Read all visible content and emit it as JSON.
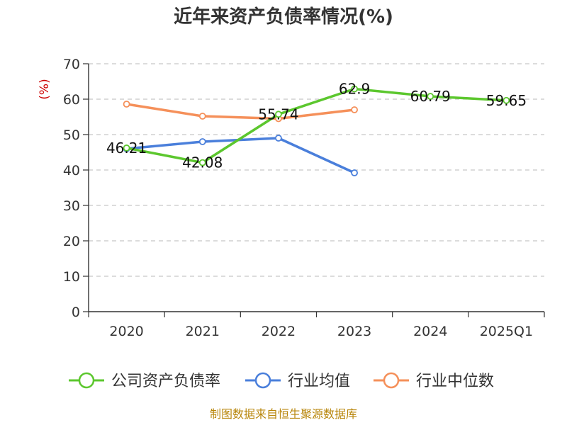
{
  "chart_data": {
    "type": "line",
    "title": "近年来资产负债率情况(%)",
    "ylabel": "(%)",
    "categories": [
      "2020",
      "2021",
      "2022",
      "2023",
      "2024",
      "2025Q1"
    ],
    "ylim": [
      0,
      70
    ],
    "yticks": [
      0,
      10,
      20,
      30,
      40,
      50,
      60,
      70
    ],
    "grid": true,
    "legend_position": "bottom",
    "series": [
      {
        "name": "公司资产负债率",
        "color": "#5cc72e",
        "values": [
          46.21,
          42.08,
          55.74,
          62.9,
          60.79,
          59.65
        ],
        "labels": [
          "46.21",
          "42.08",
          "55.74",
          "62.9",
          "60.79",
          "59.65"
        ]
      },
      {
        "name": "行业均值",
        "color": "#4a7fdb",
        "values": [
          46,
          48,
          49,
          39.2,
          null,
          null
        ]
      },
      {
        "name": "行业中位数",
        "color": "#f5905a",
        "values": [
          58.6,
          55.2,
          54.5,
          57,
          null,
          null
        ]
      }
    ],
    "source": "制图数据来自恒生聚源数据库"
  }
}
